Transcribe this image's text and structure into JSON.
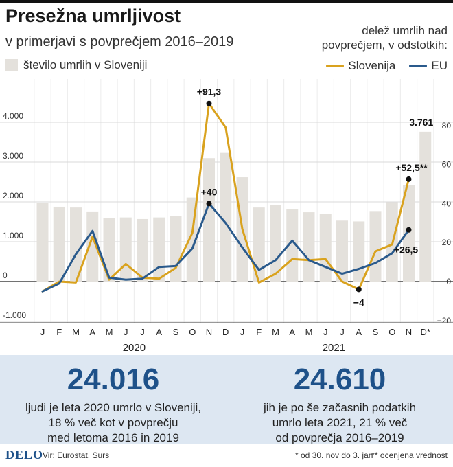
{
  "colors": {
    "bar": "#e4e1dc",
    "slovenia": "#d9a21e",
    "eu": "#2a5a8c",
    "accent": "#1e5189",
    "stats_bg": "#dde7f2"
  },
  "chart_data": {
    "type": "bar+line",
    "title": "Presežna umrljivost",
    "subtitle": "v primerjavi s povprečjem 2016–2019",
    "bar_legend": "število umrlih v Sloveniji",
    "right_note_line1": "delež umrlih nad",
    "right_note_line2": "povprečjem, v odstotkih:",
    "months": [
      "J",
      "F",
      "M",
      "A",
      "M",
      "J",
      "J",
      "A",
      "S",
      "O",
      "N",
      "D",
      "J",
      "F",
      "M",
      "A",
      "M",
      "J",
      "J",
      "A",
      "S",
      "O",
      "N",
      "D*"
    ],
    "years": [
      {
        "label": "2020",
        "index": 5.5
      },
      {
        "label": "2021",
        "index": 17.5
      }
    ],
    "left_axis": {
      "min": -1000,
      "max": 4500,
      "ticks": [
        -1000,
        0,
        1000,
        2000,
        3000,
        4000
      ],
      "tick_labels": [
        "-1.000",
        "0",
        "1.000",
        "2.000",
        "3.000",
        "4.000"
      ]
    },
    "right_axis": {
      "min": -20,
      "max": 90,
      "ticks": [
        -20,
        0,
        20,
        40,
        60,
        80
      ],
      "tick_labels": [
        "−20",
        "0",
        "20",
        "40",
        "60",
        "80"
      ]
    },
    "bars": {
      "name": "število umrlih v Sloveniji",
      "values": [
        1980,
        1880,
        1860,
        1760,
        1590,
        1610,
        1570,
        1610,
        1650,
        2110,
        3100,
        3230,
        2620,
        1860,
        1930,
        1810,
        1740,
        1700,
        1530,
        1510,
        1770,
        1990,
        2430,
        3761
      ]
    },
    "series": [
      {
        "name": "Slovenija",
        "color": "#d9a21e",
        "values": [
          -5,
          0,
          -0.5,
          23,
          1,
          9,
          2,
          1.5,
          7,
          25,
          91.3,
          79,
          27,
          -0.5,
          4,
          11.5,
          11,
          11.5,
          0,
          -4,
          15.5,
          19,
          52.5,
          null
        ]
      },
      {
        "name": "EU",
        "color": "#2a5a8c",
        "values": [
          -5,
          -1,
          14,
          26,
          2,
          1,
          1.5,
          7.5,
          8,
          17,
          40,
          30,
          17.5,
          6,
          11,
          21,
          11,
          7.5,
          4,
          6.5,
          9.5,
          14.5,
          26.5,
          null
        ]
      }
    ],
    "annotations": [
      {
        "text": "+91,3",
        "series": "Slovenija",
        "index": 10
      },
      {
        "text": "+40",
        "series": "EU",
        "index": 10
      },
      {
        "text": "+52,5**",
        "series": "Slovenija",
        "index": 22
      },
      {
        "text": "+26,5",
        "series": "EU",
        "index": 22
      },
      {
        "text": "−4",
        "series": "Slovenija",
        "index": 19
      },
      {
        "text": "3.761",
        "series": "bars",
        "index": 23
      }
    ]
  },
  "legend": {
    "slovenia": "Slovenija",
    "eu": "EU"
  },
  "stats": [
    {
      "value": "24.016",
      "text": "ljudi je leta 2020 umrlo v Sloveniji,\n18 % več kot v povprečju\nmed letoma 2016 in 2019"
    },
    {
      "value": "24.610",
      "text": "jih je po še začasnih podatkih\numrlo leta 2021, 21 % več\nod povprečja 2016–2019"
    }
  ],
  "footer": {
    "logo": "DELO",
    "source": "Vir: Eurostat, Surs",
    "note1": "* od 30. nov do 3. jan",
    "note2": "** ocenjena vrednost"
  }
}
